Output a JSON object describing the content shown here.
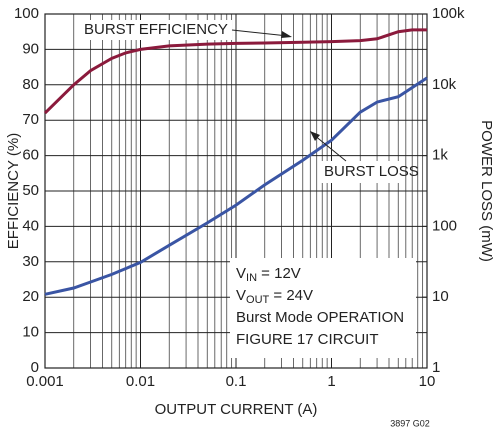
{
  "chart_data": {
    "type": "line",
    "xlabel": "OUTPUT CURRENT (A)",
    "ylabel": "EFFICIENCY (%)",
    "y2label": "POWER LOSS (mW)",
    "xscale": "log",
    "y2scale": "log",
    "grid": true,
    "minor_grid": true,
    "xlim": [
      0.001,
      10
    ],
    "xticks": [
      0.001,
      0.01,
      0.1,
      1,
      10
    ],
    "ylim": [
      0,
      100
    ],
    "yticks": [
      0,
      10,
      20,
      30,
      40,
      50,
      60,
      70,
      80,
      90,
      100
    ],
    "y2lim": [
      1,
      100000
    ],
    "y2ticks": [
      1,
      10,
      100,
      {
        "value": 1000,
        "label": "1k"
      },
      {
        "value": 10000,
        "label": "10k"
      },
      {
        "value": 100000,
        "label": "100k"
      }
    ],
    "series": [
      {
        "name": "BURST EFFICIENCY",
        "color": "#8b1a3c",
        "x": [
          0.001,
          0.002,
          0.003,
          0.005,
          0.007,
          0.01,
          0.02,
          0.05,
          0.1,
          0.2,
          0.5,
          1,
          2,
          3,
          5,
          7,
          10
        ],
        "values": [
          72,
          80,
          84,
          87.5,
          89,
          90,
          91,
          91.5,
          91.7,
          91.8,
          92,
          92.2,
          92.5,
          93,
          95,
          95.5,
          95.5
        ]
      },
      {
        "name": "BURST LOSS",
        "color": "#3a55a4",
        "axis": "y2",
        "x": [
          0.001,
          0.002,
          0.003,
          0.005,
          0.01,
          0.02,
          0.05,
          0.1,
          0.2,
          0.5,
          1,
          2,
          3,
          5,
          10
        ],
        "values": [
          11,
          13.5,
          16.4,
          21,
          31,
          54,
          112,
          200,
          385,
          860,
          1650,
          4100,
          5700,
          6800,
          12500
        ]
      }
    ],
    "conditions": [
      {
        "base": "V",
        "sub": "IN",
        "rest": " = 12V"
      },
      {
        "base": "V",
        "sub": "OUT",
        "rest": " = 24V"
      },
      {
        "base": "Burst Mode OPERATION"
      },
      {
        "base": "FIGURE 17 CIRCUIT"
      }
    ],
    "code": "3897 G02"
  }
}
